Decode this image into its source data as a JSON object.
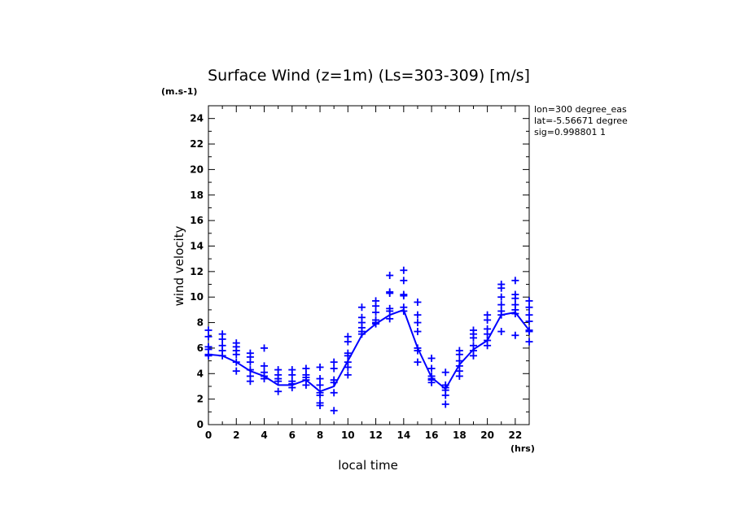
{
  "chart_data": {
    "type": "line",
    "title": "Surface Wind (z=1m) (Ls=303-309) [m/s]",
    "xlabel": "local time",
    "ylabel": "wind velocity",
    "x_unit": "(hrs)",
    "y_unit": "(m.s-1)",
    "xlim": [
      0,
      23
    ],
    "ylim": [
      0,
      25
    ],
    "x_ticks": [
      "0",
      "2",
      "4",
      "6",
      "8",
      "10",
      "12",
      "14",
      "16",
      "18",
      "20",
      "22"
    ],
    "y_ticks": [
      "0",
      "2",
      "4",
      "6",
      "8",
      "10",
      "12",
      "14",
      "16",
      "18",
      "20",
      "22",
      "24"
    ],
    "info_lines": [
      "lon=300 degree_eas",
      "lat=-5.56671 degree",
      "sig=0.998801 1"
    ],
    "series_color": "#0000ff",
    "series": [
      {
        "kind": "line",
        "x": [
          0,
          1,
          2,
          3,
          4,
          5,
          6,
          7,
          8,
          9,
          10,
          11,
          12,
          13,
          14,
          15,
          16,
          17,
          18,
          19,
          20,
          21,
          22,
          23
        ],
        "values": [
          5.5,
          5.4,
          4.9,
          4.2,
          3.8,
          3.1,
          3.1,
          3.5,
          2.6,
          3.0,
          5.0,
          7.0,
          7.9,
          8.6,
          9.0,
          6.0,
          3.7,
          2.8,
          4.7,
          5.9,
          6.6,
          8.6,
          8.8,
          7.4
        ]
      },
      {
        "kind": "markers",
        "points": [
          [
            0,
            7.4
          ],
          [
            0,
            6.9
          ],
          [
            0,
            6.1
          ],
          [
            0,
            5.9
          ],
          [
            0,
            5.5
          ],
          [
            0,
            5.4
          ],
          [
            1,
            7.1
          ],
          [
            1,
            6.7
          ],
          [
            1,
            6.2
          ],
          [
            1,
            5.8
          ],
          [
            1,
            5.4
          ],
          [
            2,
            6.4
          ],
          [
            2,
            6.1
          ],
          [
            2,
            5.8
          ],
          [
            2,
            5.5
          ],
          [
            2,
            4.9
          ],
          [
            2,
            4.2
          ],
          [
            3,
            5.6
          ],
          [
            3,
            5.3
          ],
          [
            3,
            4.9
          ],
          [
            3,
            4.3
          ],
          [
            3,
            3.8
          ],
          [
            3,
            3.4
          ],
          [
            4,
            6.0
          ],
          [
            4,
            4.6
          ],
          [
            4,
            4.1
          ],
          [
            4,
            3.8
          ],
          [
            4,
            3.6
          ],
          [
            5,
            4.3
          ],
          [
            5,
            3.9
          ],
          [
            5,
            3.6
          ],
          [
            5,
            3.4
          ],
          [
            5,
            2.6
          ],
          [
            6,
            4.3
          ],
          [
            6,
            3.9
          ],
          [
            6,
            3.4
          ],
          [
            6,
            3.2
          ],
          [
            6,
            2.9
          ],
          [
            7,
            4.4
          ],
          [
            7,
            3.9
          ],
          [
            7,
            3.7
          ],
          [
            7,
            3.5
          ],
          [
            7,
            3.1
          ],
          [
            8,
            4.5
          ],
          [
            8,
            3.6
          ],
          [
            8,
            3.1
          ],
          [
            8,
            2.5
          ],
          [
            8,
            2.3
          ],
          [
            8,
            1.7
          ],
          [
            8,
            1.5
          ],
          [
            9,
            4.9
          ],
          [
            9,
            4.4
          ],
          [
            9,
            3.5
          ],
          [
            9,
            3.3
          ],
          [
            9,
            2.5
          ],
          [
            9,
            1.1
          ],
          [
            10,
            6.9
          ],
          [
            10,
            6.5
          ],
          [
            10,
            5.6
          ],
          [
            10,
            5.4
          ],
          [
            10,
            4.9
          ],
          [
            10,
            4.5
          ],
          [
            10,
            3.9
          ],
          [
            11,
            9.2
          ],
          [
            11,
            8.4
          ],
          [
            11,
            8.0
          ],
          [
            11,
            7.6
          ],
          [
            11,
            7.3
          ],
          [
            11,
            7.1
          ],
          [
            12,
            9.7
          ],
          [
            12,
            9.3
          ],
          [
            12,
            8.8
          ],
          [
            12,
            8.2
          ],
          [
            12,
            8.0
          ],
          [
            12,
            7.9
          ],
          [
            13,
            11.7
          ],
          [
            13,
            10.4
          ],
          [
            13,
            10.3
          ],
          [
            13,
            9.1
          ],
          [
            13,
            8.9
          ],
          [
            13,
            8.3
          ],
          [
            14,
            12.1
          ],
          [
            14,
            11.3
          ],
          [
            14,
            10.2
          ],
          [
            14,
            10.1
          ],
          [
            14,
            9.2
          ],
          [
            14,
            8.9
          ],
          [
            15,
            9.6
          ],
          [
            15,
            8.6
          ],
          [
            15,
            8.0
          ],
          [
            15,
            7.3
          ],
          [
            15,
            6.0
          ],
          [
            15,
            5.8
          ],
          [
            15,
            4.9
          ],
          [
            16,
            5.2
          ],
          [
            16,
            4.4
          ],
          [
            16,
            3.8
          ],
          [
            16,
            3.6
          ],
          [
            16,
            3.5
          ],
          [
            16,
            3.3
          ],
          [
            17,
            4.1
          ],
          [
            17,
            3.1
          ],
          [
            17,
            2.9
          ],
          [
            17,
            2.7
          ],
          [
            17,
            2.3
          ],
          [
            17,
            1.6
          ],
          [
            18,
            5.8
          ],
          [
            18,
            5.5
          ],
          [
            18,
            5.0
          ],
          [
            18,
            4.6
          ],
          [
            18,
            4.2
          ],
          [
            18,
            3.8
          ],
          [
            19,
            7.4
          ],
          [
            19,
            7.1
          ],
          [
            19,
            6.8
          ],
          [
            19,
            6.2
          ],
          [
            19,
            5.8
          ],
          [
            19,
            5.4
          ],
          [
            20,
            8.6
          ],
          [
            20,
            8.2
          ],
          [
            20,
            7.5
          ],
          [
            20,
            7.1
          ],
          [
            20,
            6.6
          ],
          [
            20,
            6.2
          ],
          [
            21,
            11.0
          ],
          [
            21,
            10.7
          ],
          [
            21,
            10.0
          ],
          [
            21,
            9.4
          ],
          [
            21,
            8.9
          ],
          [
            21,
            8.6
          ],
          [
            21,
            7.3
          ],
          [
            22,
            11.3
          ],
          [
            22,
            10.2
          ],
          [
            22,
            9.9
          ],
          [
            22,
            9.4
          ],
          [
            22,
            9.0
          ],
          [
            22,
            8.7
          ],
          [
            22,
            7.0
          ],
          [
            23,
            9.7
          ],
          [
            23,
            9.2
          ],
          [
            23,
            8.6
          ],
          [
            23,
            8.1
          ],
          [
            23,
            7.4
          ],
          [
            23,
            7.3
          ],
          [
            23,
            6.5
          ]
        ]
      }
    ]
  }
}
